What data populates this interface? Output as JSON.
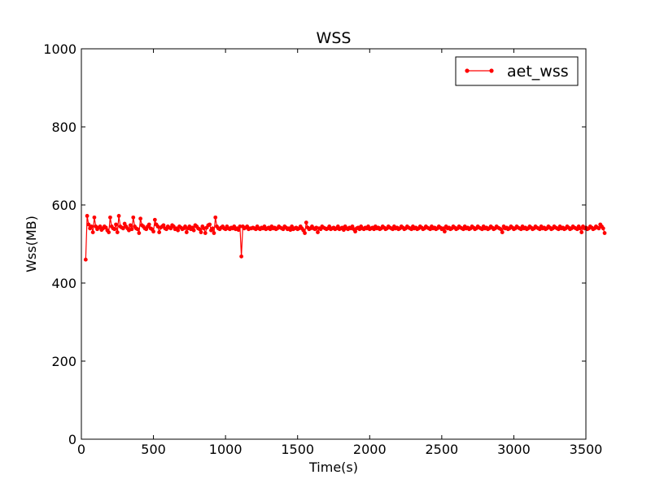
{
  "chart_data": {
    "type": "line",
    "title": "WSS",
    "xlabel": "Time(s)",
    "ylabel": "Wss(MB)",
    "xlim": [
      0,
      3500
    ],
    "ylim": [
      0,
      1000
    ],
    "xticks": [
      "0",
      "500",
      "1000",
      "1500",
      "2000",
      "2500",
      "3000",
      "3500"
    ],
    "yticks": [
      "0",
      "200",
      "400",
      "600",
      "800",
      "1000"
    ],
    "grid": false,
    "legend_position": "top-right",
    "series": [
      {
        "name": "aet_wss",
        "color": "#ff0000",
        "marker": "circle",
        "x_start": 30,
        "x_step": 10,
        "values": [
          460,
          572,
          550,
          540,
          545,
          530,
          568,
          545,
          538,
          542,
          545,
          536,
          540,
          545,
          542,
          535,
          530,
          568,
          545,
          540,
          538,
          550,
          530,
          572,
          545,
          542,
          540,
          552,
          545,
          540,
          535,
          548,
          538,
          568,
          545,
          540,
          538,
          528,
          565,
          548,
          545,
          540,
          538,
          545,
          550,
          540,
          538,
          532,
          562,
          550,
          545,
          530,
          542,
          545,
          548,
          540,
          538,
          545,
          542,
          540,
          548,
          545,
          538,
          540,
          535,
          545,
          542,
          538,
          540,
          545,
          530,
          540,
          545,
          538,
          542,
          535,
          548,
          545,
          540,
          538,
          530,
          545,
          540,
          528,
          542,
          548,
          550,
          535,
          540,
          528,
          568,
          545,
          540,
          538,
          542,
          545,
          540,
          538,
          545,
          540,
          538,
          542,
          540,
          545,
          538,
          540,
          536,
          545,
          468,
          545,
          540,
          542,
          545,
          538,
          540,
          540,
          542,
          540,
          538,
          545,
          540,
          538,
          542,
          540,
          545,
          538,
          540,
          542,
          538,
          545,
          540,
          542,
          538,
          540,
          545,
          542,
          540,
          538,
          545,
          542,
          538,
          540,
          536,
          545,
          538,
          540,
          542,
          538,
          540,
          545,
          540,
          535,
          528,
          555,
          542,
          538,
          540,
          545,
          540,
          538,
          542,
          530,
          540,
          538,
          545,
          542,
          540,
          538,
          540,
          545,
          538,
          540,
          542,
          538,
          540,
          545,
          538,
          540,
          542,
          536,
          545,
          540,
          538,
          542,
          540,
          545,
          538,
          532,
          540,
          542,
          538,
          545,
          540,
          538,
          542,
          540,
          545,
          538,
          540,
          542,
          538,
          545,
          540,
          542,
          538,
          540,
          545,
          542,
          538,
          540,
          545,
          542,
          540,
          538,
          545,
          540,
          542,
          538,
          540,
          545,
          542,
          538,
          540,
          545,
          542,
          540,
          538,
          545,
          540,
          542,
          538,
          540,
          545,
          542,
          538,
          540,
          545,
          542,
          540,
          538,
          545,
          540,
          542,
          538,
          540,
          545,
          542,
          538,
          540,
          532,
          545,
          540,
          542,
          538,
          540,
          545,
          542,
          538,
          540,
          545,
          542,
          540,
          538,
          545,
          540,
          542,
          538,
          540,
          545,
          542,
          538,
          540,
          545,
          542,
          540,
          538,
          545,
          540,
          542,
          538,
          540,
          545,
          542,
          538,
          540,
          545,
          542,
          540,
          538,
          530,
          545,
          540,
          542,
          538,
          540,
          545,
          542,
          538,
          540,
          545,
          542,
          540,
          538,
          545,
          540,
          542,
          538,
          540,
          545,
          542,
          538,
          540,
          545,
          542,
          540,
          538,
          545,
          540,
          542,
          538,
          540,
          545,
          542,
          538,
          540,
          545,
          542,
          540,
          538,
          545,
          540,
          542,
          538,
          540,
          545,
          542,
          538,
          540,
          545,
          542,
          540,
          538,
          545,
          540,
          530,
          545,
          540,
          542,
          538,
          540,
          545,
          542,
          538,
          540,
          545,
          542,
          540,
          550,
          545,
          540,
          528
        ]
      }
    ]
  }
}
